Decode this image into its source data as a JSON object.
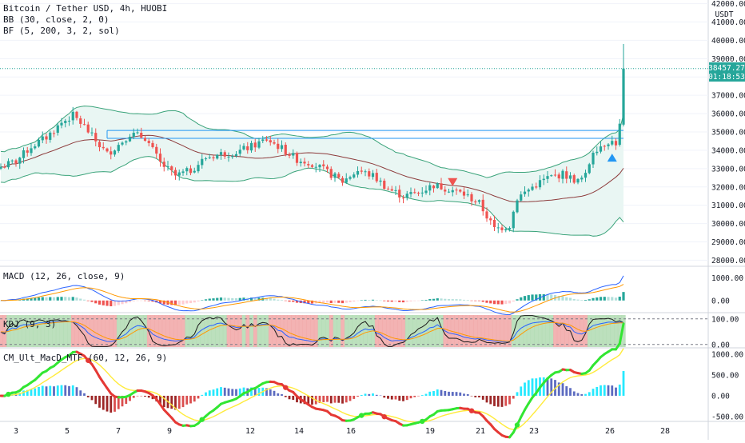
{
  "header": {
    "symbol_line": "Bitcoin / Tether USD, 4h, HUOBI",
    "bb_line": "BB (30, close, 2, 0)",
    "bf_line": "BF (5, 200, 3, 2, sol)"
  },
  "price_axis": {
    "currency": "USDT",
    "ticks": [
      "42000.00",
      "41000.00",
      "40000.00",
      "39000.00",
      "38000.00",
      "37000.00",
      "36000.00",
      "35000.00",
      "34000.00",
      "33000.00",
      "32000.00",
      "31000.00",
      "30000.00",
      "29000.00",
      "28000.00"
    ],
    "last_price": "38457.27",
    "countdown": "01:18:53"
  },
  "date_axis": {
    "labels": [
      "3",
      "5",
      "7",
      "9",
      "12",
      "14",
      "16",
      "19",
      "21",
      "23",
      "26",
      "28"
    ]
  },
  "panes": {
    "macd": {
      "title": "MACD (12, 26, close, 9)",
      "ticks": [
        "1000.00",
        "0.00"
      ]
    },
    "kdj": {
      "title": "KDJ (9, 3)",
      "ticks": [
        "100.00",
        "0.00"
      ]
    },
    "cm": {
      "title": "CM_Ult_MacD_MTF (60, 12, 26, 9)",
      "ticks": [
        "1000.00",
        "500.00",
        "0.00",
        "-500.00"
      ]
    }
  },
  "colors": {
    "up": "#26a69a",
    "down": "#ef5350",
    "bb_band": "#3aa37a",
    "bb_basis": "#8d3b3b",
    "bb_fill": "#e9f6f3",
    "macd_line": "#2962ff",
    "signal_line": "#ff9800",
    "kdj_pos": "#a5d6a7",
    "kdj_neg": "#ef9a9a",
    "price_label_bg": "#26a69a"
  },
  "chart_data": {
    "type": "candlestick",
    "price_range": [
      27800,
      42200
    ],
    "macd_range": [
      -500,
      1400
    ],
    "kdj_range": [
      -10,
      115
    ],
    "cm_range": [
      -600,
      1100
    ],
    "markers": {
      "sell": {
        "candle": 119,
        "price": 32000
      },
      "buy": {
        "candle": 161,
        "price": 33600
      }
    },
    "resistance": [
      {
        "from": 28,
        "to": 164,
        "price": 35080
      },
      {
        "from": 28,
        "to": 164,
        "price": 34650
      }
    ]
  }
}
